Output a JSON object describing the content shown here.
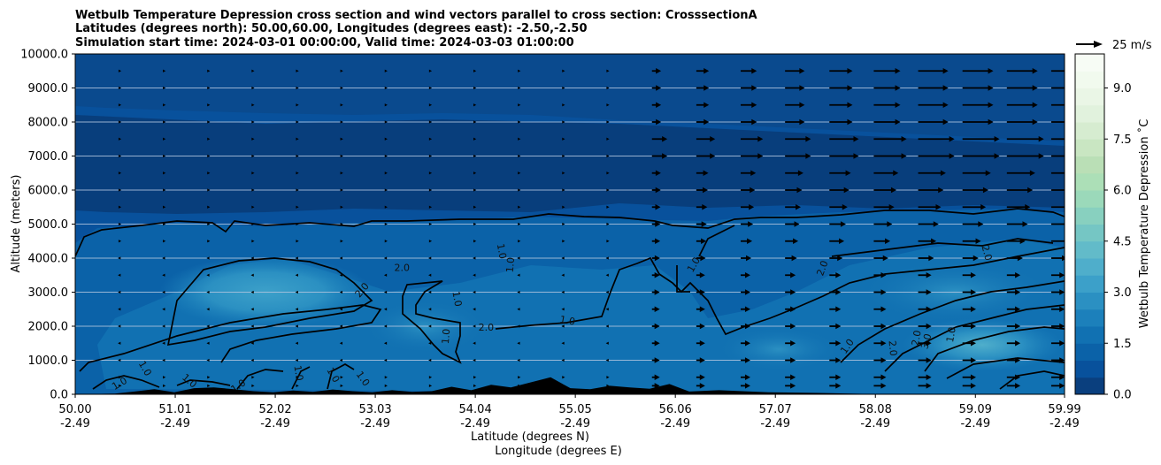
{
  "title_lines": [
    "Wetbulb Temperature Depression cross section and wind vectors parallel to cross section: CrosssectionA",
    "Latitudes (degrees north): 50.00,60.00, Longitudes (degrees east): -2.50,-2.50",
    "Simulation start time: 2024-03-01 00:00:00, Valid time: 2024-03-03 01:00:00"
  ],
  "chart_data": {
    "type": "heatmap",
    "title": "Wetbulb Temperature Depression cross section and wind vectors parallel to cross section: CrosssectionA",
    "ylabel": "Altitude (meters)",
    "xlabel_lines": [
      "Latitude (degrees N)",
      "Longitude (degrees E)"
    ],
    "xlim": [
      50.0,
      59.99
    ],
    "ylim": [
      0,
      10000
    ],
    "x_ticks": [
      {
        "lat": "50.00",
        "lon": "-2.49",
        "value": 50.0
      },
      {
        "lat": "51.01",
        "lon": "-2.49",
        "value": 51.01
      },
      {
        "lat": "52.02",
        "lon": "-2.49",
        "value": 52.02
      },
      {
        "lat": "53.03",
        "lon": "-2.49",
        "value": 53.03
      },
      {
        "lat": "54.04",
        "lon": "-2.49",
        "value": 54.04
      },
      {
        "lat": "55.05",
        "lon": "-2.49",
        "value": 55.05
      },
      {
        "lat": "56.06",
        "lon": "-2.49",
        "value": 56.06
      },
      {
        "lat": "57.07",
        "lon": "-2.49",
        "value": 57.07
      },
      {
        "lat": "58.08",
        "lon": "-2.49",
        "value": 58.08
      },
      {
        "lat": "59.09",
        "lon": "-2.49",
        "value": 59.09
      },
      {
        "lat": "59.99",
        "lon": "-2.49",
        "value": 59.99
      }
    ],
    "y_ticks": [
      {
        "label": "0.0",
        "value": 0
      },
      {
        "label": "1000.0",
        "value": 1000
      },
      {
        "label": "2000.0",
        "value": 2000
      },
      {
        "label": "3000.0",
        "value": 3000
      },
      {
        "label": "4000.0",
        "value": 4000
      },
      {
        "label": "5000.0",
        "value": 5000
      },
      {
        "label": "6000.0",
        "value": 6000
      },
      {
        "label": "7000.0",
        "value": 7000
      },
      {
        "label": "8000.0",
        "value": 8000
      },
      {
        "label": "9000.0",
        "value": 9000
      },
      {
        "label": "10000.0",
        "value": 10000
      }
    ],
    "grid": "horizontal",
    "colorbar": {
      "label": "Wetbulb Temperature Depression ˚C",
      "range": [
        0,
        10
      ],
      "ticks": [
        {
          "label": "0.0",
          "value": 0
        },
        {
          "label": "1.5",
          "value": 1.5
        },
        {
          "label": "3.0",
          "value": 3.0
        },
        {
          "label": "4.5",
          "value": 4.5
        },
        {
          "label": "6.0",
          "value": 6.0
        },
        {
          "label": "7.5",
          "value": 7.5
        },
        {
          "label": "9.0",
          "value": 9.0
        }
      ],
      "colors": [
        "#0a3f7e",
        "#08519c",
        "#0b62a8",
        "#1171b2",
        "#1c80bb",
        "#2b90c2",
        "#3ca0c9",
        "#4faecb",
        "#62bbc9",
        "#75c6c4",
        "#88d0bf",
        "#9bd9ba",
        "#acdfb7",
        "#badfb6",
        "#c9e6c2",
        "#d6ecd0",
        "#e1f2dd",
        "#eaf6e6",
        "#f1faee",
        "#f7fcf5"
      ]
    },
    "reference_vector": {
      "label": "25 m/s",
      "value": 25
    },
    "contour_levels": [
      1.0,
      2.0,
      3.0
    ],
    "contour_labels": [
      {
        "text": "1.0",
        "x": 50.7,
        "y": 750,
        "rot": 60
      },
      {
        "text": "1.0",
        "x": 50.45,
        "y": 300,
        "rot": -30
      },
      {
        "text": "1.0",
        "x": 51.15,
        "y": 380,
        "rot": 40
      },
      {
        "text": "1.0",
        "x": 51.65,
        "y": 230,
        "rot": -35
      },
      {
        "text": "2.0",
        "x": 52.9,
        "y": 3050,
        "rot": -50
      },
      {
        "text": "2.0",
        "x": 53.3,
        "y": 3700,
        "rot": 0
      },
      {
        "text": "1.0",
        "x": 52.25,
        "y": 620,
        "rot": 80
      },
      {
        "text": "1.0",
        "x": 52.6,
        "y": 560,
        "rot": 60
      },
      {
        "text": "1.0",
        "x": 52.9,
        "y": 450,
        "rot": 55
      },
      {
        "text": "1.0",
        "x": 54.3,
        "y": 4200,
        "rot": 80
      },
      {
        "text": "1.0",
        "x": 54.4,
        "y": 3800,
        "rot": -85
      },
      {
        "text": "1.0",
        "x": 53.85,
        "y": 2800,
        "rot": 80
      },
      {
        "text": "2.0",
        "x": 54.15,
        "y": 1950,
        "rot": 0
      },
      {
        "text": "1.0",
        "x": 53.75,
        "y": 1700,
        "rot": -85
      },
      {
        "text": "1.0",
        "x": 54.97,
        "y": 2150,
        "rot": 10
      },
      {
        "text": "1.0",
        "x": 56.25,
        "y": 3800,
        "rot": -60
      },
      {
        "text": "2.0",
        "x": 57.55,
        "y": 3700,
        "rot": -70
      },
      {
        "text": "1.0",
        "x": 57.8,
        "y": 1400,
        "rot": -55
      },
      {
        "text": "2.0",
        "x": 58.25,
        "y": 1350,
        "rot": 85
      },
      {
        "text": "3.0",
        "x": 58.6,
        "y": 1550,
        "rot": -75
      },
      {
        "text": "2.0",
        "x": 58.5,
        "y": 1650,
        "rot": -80
      },
      {
        "text": "1.0",
        "x": 58.85,
        "y": 1750,
        "rot": -80
      },
      {
        "text": "2.0",
        "x": 59.2,
        "y": 4150,
        "rot": 75
      }
    ],
    "terrain": {
      "x": [
        50.0,
        50.4,
        50.6,
        50.8,
        51.0,
        51.2,
        51.4,
        51.6,
        51.8,
        52.0,
        52.2,
        52.4,
        52.6,
        52.8,
        53.0,
        53.2,
        53.4,
        53.6,
        53.8,
        54.0,
        54.2,
        54.4,
        54.6,
        54.8,
        55.0,
        55.2,
        55.4,
        55.6,
        55.8,
        56.0,
        56.2,
        56.5,
        57.0,
        57.5,
        58.0,
        59.0,
        59.99
      ],
      "height": [
        0,
        20,
        80,
        150,
        60,
        180,
        200,
        150,
        90,
        60,
        110,
        70,
        140,
        90,
        60,
        120,
        70,
        90,
        220,
        120,
        280,
        200,
        350,
        500,
        180,
        150,
        250,
        200,
        160,
        300,
        80,
        120,
        60,
        40,
        10,
        0,
        0
      ]
    },
    "wind_field": {
      "columns": 22,
      "levels_m": [
        250,
        500,
        1000,
        1500,
        2000,
        2500,
        3000,
        3500,
        4000,
        4500,
        5000,
        5500,
        6000,
        6500,
        7000,
        7500,
        8000,
        8500,
        9000,
        9500
      ],
      "notes": "wind speeds increase northward and aloft; south of 56 N nearly calm"
    }
  }
}
